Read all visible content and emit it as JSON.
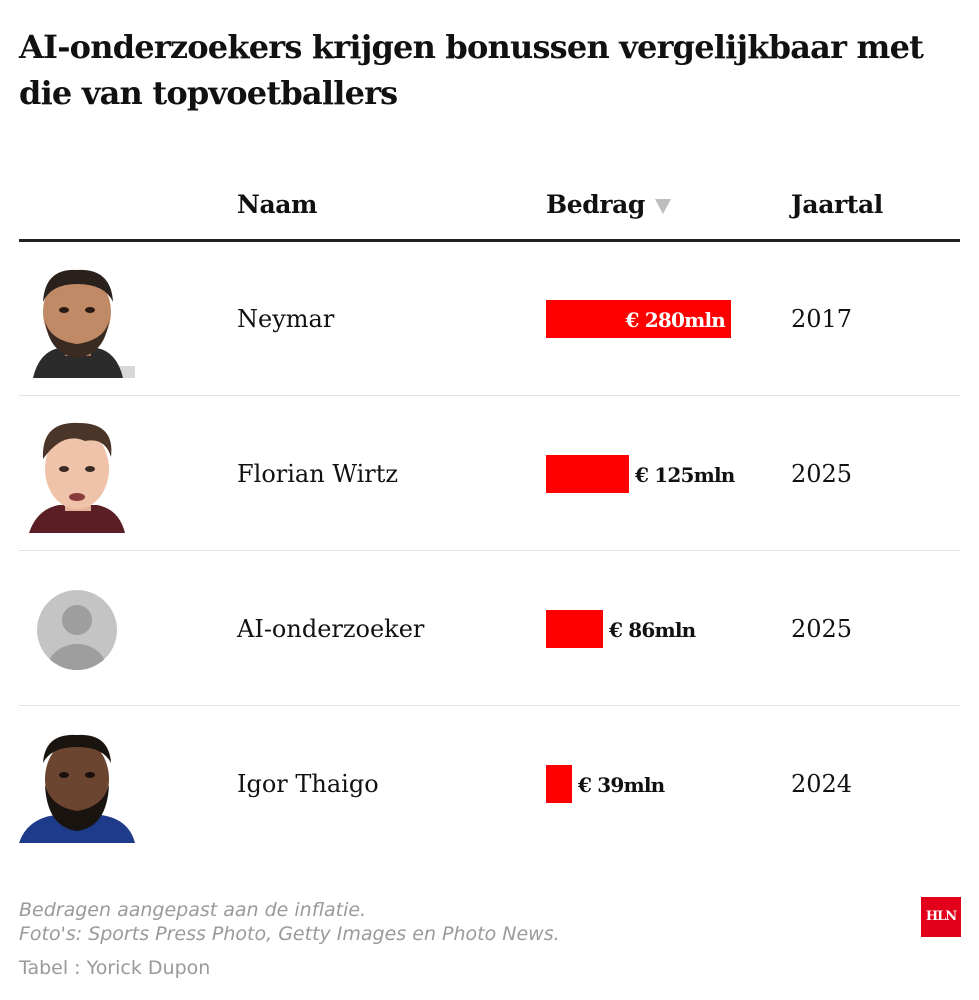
{
  "title": "AI-onderzoekers krijgen bonussen vergelijkbaar met die van topvoetballers",
  "columns": {
    "name": "Naam",
    "amount": "Bedrag",
    "year": "Jaartal"
  },
  "colors": {
    "bar": "#ff0000",
    "logo": "#e2001a"
  },
  "chart_data": {
    "type": "bar",
    "orientation": "horizontal",
    "title": "AI-onderzoekers krijgen bonussen vergelijkbaar met die van topvoetballers",
    "categories": [
      "Neymar",
      "Florian Wirtz",
      "AI-onderzoeker",
      "Igor Thaigo"
    ],
    "values": [
      280,
      125,
      86,
      39
    ],
    "unit": "mln €",
    "xlim": [
      0,
      280
    ],
    "sorted_by": "Bedrag (descending)"
  },
  "rows": [
    {
      "name": "Neymar",
      "amount_label": "€ 280mln",
      "value": 280,
      "year": "2017",
      "photo": "player-photo"
    },
    {
      "name": "Florian Wirtz",
      "amount_label": "€ 125mln",
      "value": 125,
      "year": "2025",
      "photo": "player-photo"
    },
    {
      "name": "AI-onderzoeker",
      "amount_label": "€ 86mln",
      "value": 86,
      "year": "2025",
      "photo": "avatar-placeholder"
    },
    {
      "name": "Igor Thaigo",
      "amount_label": "€ 39mln",
      "value": 39,
      "year": "2024",
      "photo": "player-photo"
    }
  ],
  "footer": {
    "note_line1": "Bedragen aangepast aan de inflatie.",
    "note_line2": "Foto's: Sports Press Photo, Getty Images en Photo News.",
    "credit": "Tabel : Yorick Dupon",
    "logo": "HLN"
  }
}
